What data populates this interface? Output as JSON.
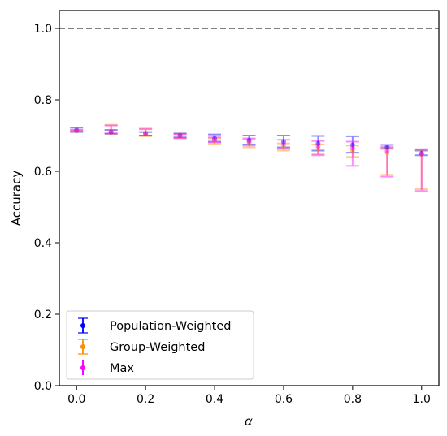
{
  "chart_data": {
    "type": "scatter",
    "xlabel": "α",
    "ylabel": "Accuracy",
    "xlim": [
      -0.05,
      1.05
    ],
    "ylim": [
      0.0,
      1.05
    ],
    "x_ticks": [
      "0.0",
      "0.2",
      "0.4",
      "0.6",
      "0.8",
      "1.0"
    ],
    "y_ticks": [
      "0.0",
      "0.2",
      "0.4",
      "0.6",
      "0.8",
      "1.0"
    ],
    "grid": false,
    "legend_position": "lower-left",
    "reference_line": {
      "y": 1.0,
      "style": "dashed",
      "color": "#7f7f7f"
    },
    "series": [
      {
        "name": "Population-Weighted",
        "color": "#0000ff",
        "x": [
          0.0,
          0.1,
          0.2,
          0.3,
          0.4,
          0.5,
          0.6,
          0.7,
          0.8,
          0.9,
          1.0
        ],
        "y": [
          0.715,
          0.71,
          0.706,
          0.7,
          0.692,
          0.687,
          0.683,
          0.678,
          0.674,
          0.668,
          0.65
        ],
        "lower": [
          0.71,
          0.705,
          0.7,
          0.695,
          0.683,
          0.675,
          0.667,
          0.658,
          0.652,
          0.663,
          0.645
        ],
        "upper": [
          0.722,
          0.716,
          0.71,
          0.706,
          0.703,
          0.7,
          0.7,
          0.699,
          0.698,
          0.674,
          0.658
        ]
      },
      {
        "name": "Group-Weighted",
        "color": "#ff8c00",
        "x": [
          0.0,
          0.1,
          0.2,
          0.3,
          0.4,
          0.5,
          0.6,
          0.7,
          0.8,
          0.9,
          1.0
        ],
        "y": [
          0.713,
          0.712,
          0.705,
          0.698,
          0.686,
          0.679,
          0.668,
          0.664,
          0.657,
          0.651,
          0.647
        ],
        "lower": [
          0.711,
          0.705,
          0.698,
          0.692,
          0.675,
          0.667,
          0.658,
          0.648,
          0.64,
          0.59,
          0.55
        ],
        "upper": [
          0.715,
          0.73,
          0.72,
          0.705,
          0.692,
          0.689,
          0.678,
          0.675,
          0.672,
          0.665,
          0.66
        ]
      },
      {
        "name": "Max",
        "color": "#ff00ff",
        "x": [
          0.0,
          0.1,
          0.2,
          0.3,
          0.4,
          0.5,
          0.6,
          0.7,
          0.8,
          0.9,
          1.0
        ],
        "y": [
          0.714,
          0.711,
          0.706,
          0.699,
          0.688,
          0.683,
          0.676,
          0.671,
          0.665,
          0.657,
          0.648
        ],
        "lower": [
          0.712,
          0.706,
          0.7,
          0.693,
          0.68,
          0.672,
          0.663,
          0.645,
          0.615,
          0.585,
          0.545
        ],
        "upper": [
          0.716,
          0.728,
          0.718,
          0.704,
          0.695,
          0.692,
          0.688,
          0.685,
          0.683,
          0.668,
          0.662
        ]
      }
    ]
  }
}
